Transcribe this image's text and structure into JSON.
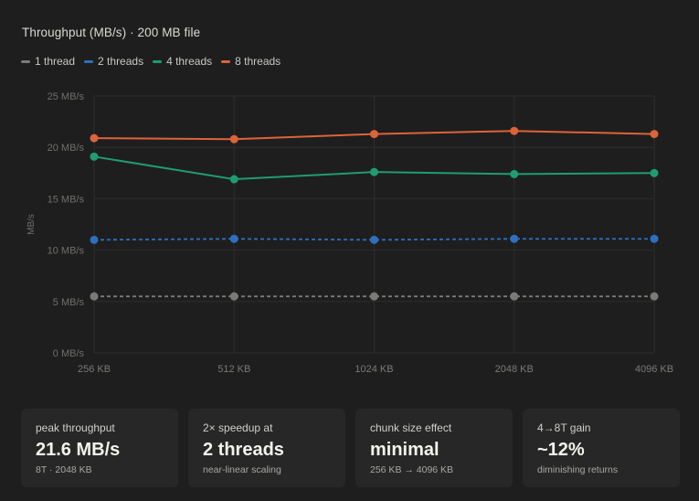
{
  "chart_data": {
    "type": "line",
    "title": "Throughput (MB/s) · 200 MB file",
    "ylabel": "MB/s",
    "xlabel": "",
    "categories": [
      "256 KB",
      "512 KB",
      "1024 KB",
      "2048 KB",
      "4096 KB"
    ],
    "y_ticks": [
      "0 MB/s",
      "5 MB/s",
      "10 MB/s",
      "15 MB/s",
      "20 MB/s",
      "25 MB/s"
    ],
    "ylim": [
      0,
      25
    ],
    "grid": true,
    "legend_position": "top-left",
    "series": [
      {
        "name": "1 thread",
        "color": "#7a7a76",
        "style": "dashed",
        "values": [
          5.5,
          5.5,
          5.5,
          5.5,
          5.5
        ]
      },
      {
        "name": "2 threads",
        "color": "#2f6fc0",
        "style": "dashed",
        "values": [
          11.0,
          11.1,
          11.0,
          11.1,
          11.1
        ]
      },
      {
        "name": "4 threads",
        "color": "#1f9c72",
        "style": "solid",
        "values": [
          19.1,
          16.9,
          17.6,
          17.4,
          17.5
        ]
      },
      {
        "name": "8 threads",
        "color": "#dc6438",
        "style": "solid",
        "values": [
          20.9,
          20.8,
          21.3,
          21.6,
          21.3
        ]
      }
    ]
  },
  "cards": [
    {
      "label": "peak throughput",
      "value": "21.6 MB/s",
      "sub": "8T · 2048 KB"
    },
    {
      "label": "2× speedup at",
      "value": "2 threads",
      "sub": "near-linear scaling"
    },
    {
      "label": "chunk size effect",
      "value": "minimal",
      "sub": "256 KB → 4096 KB"
    },
    {
      "label": "4→8T gain",
      "value": "~12%",
      "sub": "diminishing returns"
    }
  ],
  "colors": {
    "background": "#1e1e1e",
    "card": "#272727",
    "grid": "#2d2d2d"
  }
}
